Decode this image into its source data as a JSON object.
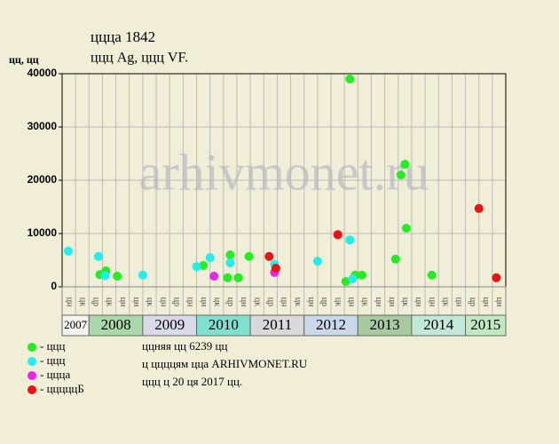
{
  "chart_data": {
    "type": "scatter",
    "title": "ццца 1842",
    "subtitle": "ццц Ag, ццц VF.",
    "y_label": "цц, цц",
    "watermark": "arhivmonet.ru",
    "xlim": [
      0,
      33
    ],
    "ylim": [
      0,
      40000
    ],
    "yticks": [
      0,
      10000,
      20000,
      30000,
      40000
    ],
    "grid": true,
    "x_labels": [
      "цн",
      "цк",
      "цр",
      "цк",
      "цн",
      "цн",
      "цк",
      "цн",
      "цр",
      "цн",
      "цн",
      "цк",
      "цр",
      "цн",
      "цк",
      "цр",
      "цн",
      "цк",
      "цн",
      "цр",
      "цк",
      "цн",
      "цк",
      "цн",
      "цн",
      "цк",
      "цн",
      "цн",
      "цк",
      "цн",
      "цр",
      "цн",
      "цн"
    ],
    "years": [
      {
        "label": "2007",
        "span": 2,
        "color": "#f4f4f0"
      },
      {
        "label": "2008",
        "span": 4,
        "color": "#a9d9a9"
      },
      {
        "label": "2009",
        "span": 4,
        "color": "#d9d9e9"
      },
      {
        "label": "2010",
        "span": 4,
        "color": "#80e0d0"
      },
      {
        "label": "2011",
        "span": 4,
        "color": "#d9d9d9"
      },
      {
        "label": "2012",
        "span": 4,
        "color": "#c9d9e9"
      },
      {
        "label": "2013",
        "span": 4,
        "color": "#a9c9a1"
      },
      {
        "label": "2014",
        "span": 4,
        "color": "#c1e9d9"
      },
      {
        "label": "2015",
        "span": 3,
        "color": "#c1e9c1"
      }
    ],
    "series": [
      {
        "name": "- ццц",
        "color": "#22ee22",
        "x": [
          2.8,
          3.25,
          4.1,
          10.5,
          12.3,
          12.5,
          13.1,
          13.9,
          21.4,
          21.1,
          21.8,
          22.3,
          24.8,
          25.2,
          25.5,
          25.6,
          27.5
        ],
        "values": [
          2300,
          3000,
          2000,
          4000,
          1700,
          6000,
          1700,
          5700,
          39000,
          1000,
          2200,
          2200,
          5200,
          21000,
          23000,
          11000,
          2200
        ]
      },
      {
        "name": "- ццц",
        "color": "#22eeee",
        "x": [
          0.46,
          2.7,
          3.2,
          6.0,
          10.0,
          11.0,
          12.5,
          15.8,
          19.0,
          21.4,
          21.6
        ],
        "values": [
          6700,
          5700,
          2100,
          2200,
          3800,
          5500,
          4500,
          4200,
          4800,
          8800,
          1500
        ]
      },
      {
        "name": "- ццца",
        "color": "#ee22ee",
        "x": [
          11.3,
          15.8
        ],
        "values": [
          2000,
          2700
        ]
      },
      {
        "name": "- цццццБ",
        "color": "#ee1111",
        "x": [
          15.4,
          15.9,
          20.5,
          31.0,
          32.3
        ],
        "values": [
          5700,
          3500,
          9800,
          14700,
          1700
        ]
      }
    ],
    "notes": [
      "ццняя цц 6239 цц",
      "ц ццццям цца ARHIVMONET.RU",
      "ццц ц 20 ця 2017 цц."
    ]
  }
}
